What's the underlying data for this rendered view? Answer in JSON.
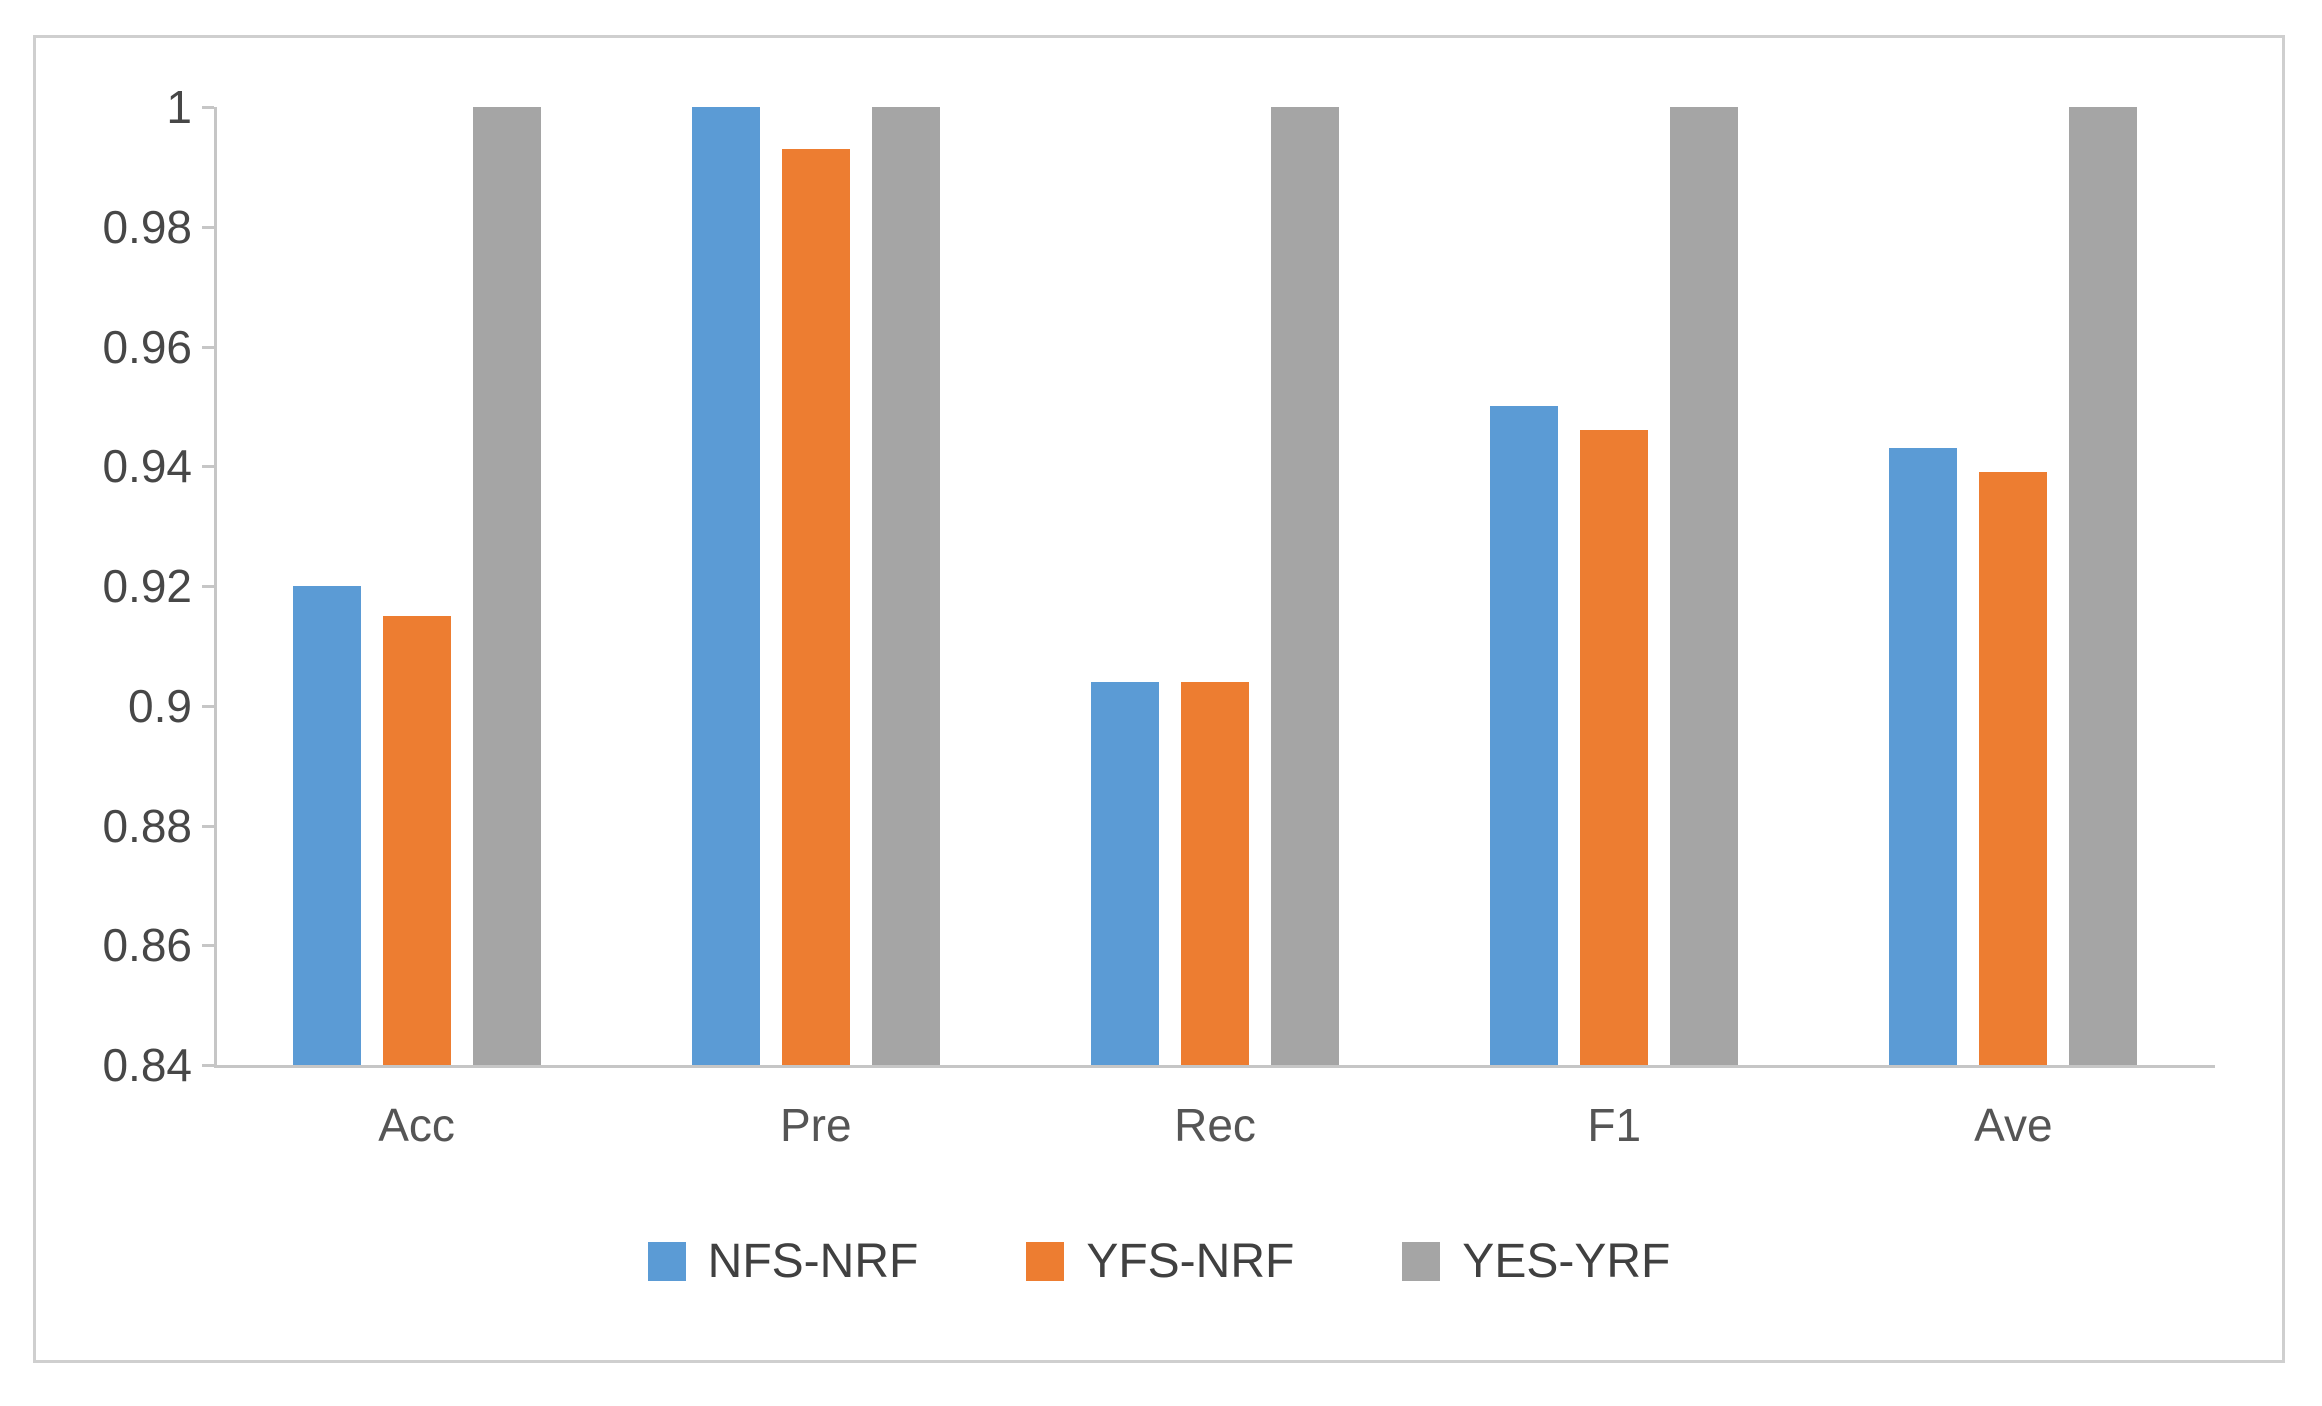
{
  "figure": {
    "background": "#ffffff",
    "frame_border_color": "#cfcfcf",
    "axis_line_color": "#c6c6c6",
    "tick_label_color": "#474747",
    "category_label_color": "#555555",
    "legend_label_color": "#404040"
  },
  "chart_data": {
    "type": "bar",
    "title": "",
    "xlabel": "",
    "ylabel": "",
    "categories": [
      "Acc",
      "Pre",
      "Rec",
      "F1",
      "Ave"
    ],
    "series": [
      {
        "name": "NFS-NRF",
        "color": "#5b9bd5",
        "values": [
          0.92,
          1.0,
          0.904,
          0.95,
          0.943
        ]
      },
      {
        "name": "YFS-NRF",
        "color": "#ed7d31",
        "values": [
          0.915,
          0.993,
          0.904,
          0.946,
          0.939
        ]
      },
      {
        "name": "YES-YRF",
        "color": "#a5a5a5",
        "values": [
          1.0,
          1.0,
          1.0,
          1.0,
          1.0
        ]
      }
    ],
    "ylim": [
      0.84,
      1.0
    ],
    "ytick_step": 0.02,
    "ytick_labels": [
      "1",
      "0.98",
      "0.96",
      "0.94",
      "0.92",
      "0.9",
      "0.88",
      "0.86",
      "0.84"
    ],
    "grid": false,
    "legend_position": "bottom-center"
  }
}
